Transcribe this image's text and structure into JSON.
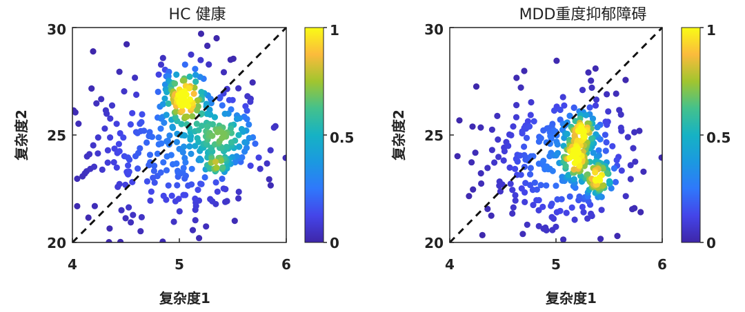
{
  "chart_data": [
    {
      "type": "scatter",
      "title": "HC 健康",
      "xlabel": "复杂度1",
      "ylabel": "复杂度2",
      "xlim": [
        4,
        6
      ],
      "ylim": [
        20,
        30
      ],
      "xticks": [
        "4",
        "5",
        "6"
      ],
      "yticks": [
        "20",
        "25",
        "30"
      ],
      "grid": false,
      "colormap": "parula",
      "colorbar": {
        "ticks": [
          "0",
          "0.5",
          "1"
        ],
        "range": [
          0,
          1
        ]
      },
      "diagonal_reference_line": true,
      "density_clusters": [
        {
          "x": 5.05,
          "y": 26.8,
          "sx": 0.12,
          "sy": 0.8,
          "n": 90,
          "w": 1.0
        },
        {
          "x": 5.4,
          "y": 25.0,
          "sx": 0.2,
          "sy": 0.8,
          "n": 80,
          "w": 0.55
        },
        {
          "x": 5.35,
          "y": 23.6,
          "sx": 0.08,
          "sy": 0.3,
          "n": 20,
          "w": 0.55
        },
        {
          "x": 5.0,
          "y": 24.5,
          "sx": 0.45,
          "sy": 1.9,
          "n": 150,
          "w": 0.2
        },
        {
          "x": 4.8,
          "y": 24.0,
          "sx": 0.5,
          "sy": 2.4,
          "n": 130,
          "w": 0.05
        }
      ]
    },
    {
      "type": "scatter",
      "title": "MDD重度抑郁障碍",
      "xlabel": "复杂度1",
      "ylabel": "复杂度2",
      "xlim": [
        4,
        6
      ],
      "ylim": [
        20,
        30
      ],
      "xticks": [
        "4",
        "5",
        "6"
      ],
      "yticks": [
        "20",
        "25",
        "30"
      ],
      "grid": false,
      "colormap": "parula",
      "colorbar": {
        "ticks": [
          "0",
          "0.5",
          "1"
        ],
        "range": [
          0,
          1
        ]
      },
      "diagonal_reference_line": true,
      "density_clusters": [
        {
          "x": 5.25,
          "y": 25.2,
          "sx": 0.08,
          "sy": 0.5,
          "n": 45,
          "w": 0.85
        },
        {
          "x": 5.18,
          "y": 23.9,
          "sx": 0.07,
          "sy": 0.5,
          "n": 45,
          "w": 0.95
        },
        {
          "x": 5.4,
          "y": 23.0,
          "sx": 0.08,
          "sy": 0.5,
          "n": 45,
          "w": 0.9
        },
        {
          "x": 5.1,
          "y": 24.0,
          "sx": 0.35,
          "sy": 1.8,
          "n": 170,
          "w": 0.25
        },
        {
          "x": 4.9,
          "y": 23.5,
          "sx": 0.45,
          "sy": 2.2,
          "n": 130,
          "w": 0.05
        }
      ]
    }
  ]
}
